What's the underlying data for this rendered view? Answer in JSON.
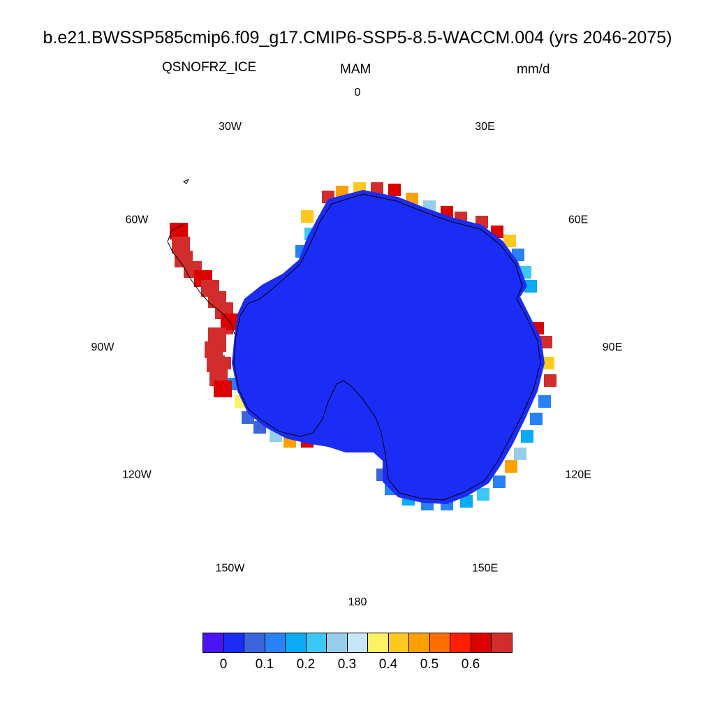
{
  "title": "b.e21.BWSSP585cmip6.f09_g17.CMIP6-SSP5-8.5-WACCM.004 (yrs 2046-2075)",
  "left_label": "QSNOFRZ_ICE",
  "center_label": "MAM",
  "right_label": "mm/d",
  "projection": "south polar stereographic",
  "longitude_labels": [
    "0",
    "30E",
    "60E",
    "90E",
    "120E",
    "150E",
    "180",
    "150W",
    "120W",
    "90W",
    "60W",
    "30W"
  ],
  "colors": {
    "interior": "#1a2cf5",
    "coast_blue": "#3a6ad8",
    "coast_red": "#d42a2a"
  },
  "colorbar": {
    "colors": [
      "#4b14f5",
      "#1a2cf5",
      "#3c64dc",
      "#2882f5",
      "#0aaaf5",
      "#3cc8f5",
      "#96cdeb",
      "#c8e6fa",
      "#fff064",
      "#ffc81e",
      "#ffa000",
      "#ff6e00",
      "#ff1e00",
      "#dc0000",
      "#d22d2d"
    ],
    "tick_labels": [
      "0",
      "0.1",
      "0.2",
      "0.3",
      "0.4",
      "0.5",
      "0.6"
    ]
  }
}
